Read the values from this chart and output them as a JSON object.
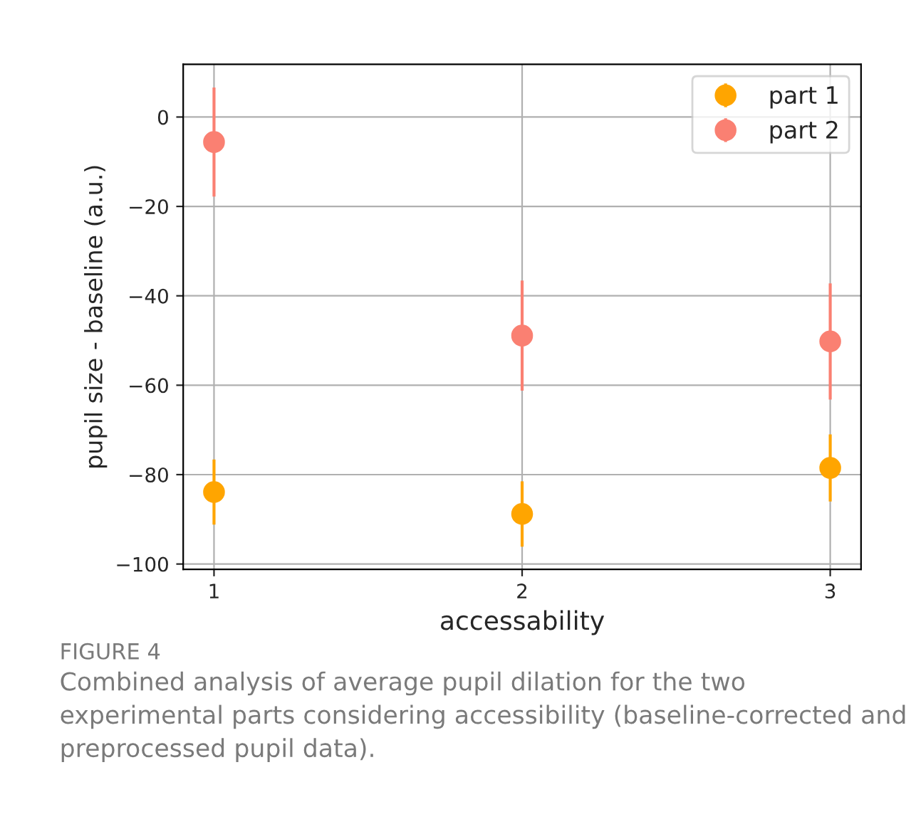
{
  "chart_data": {
    "type": "scatter",
    "xlabel": "accessability",
    "ylabel": "pupil size - baseline (a.u.)",
    "x": [
      1,
      2,
      3
    ],
    "series": [
      {
        "name": "part 1",
        "color": "#ffa500",
        "values": [
          -83.9,
          -88.8,
          -78.5
        ],
        "errors": [
          7.3,
          7.3,
          7.5
        ]
      },
      {
        "name": "part 2",
        "color": "#fa8072",
        "values": [
          -5.6,
          -48.9,
          -50.2
        ],
        "errors": [
          12.2,
          12.3,
          13
        ]
      }
    ],
    "xlim": [
      0.9,
      3.1
    ],
    "xticks": [
      1,
      2,
      3
    ],
    "ylim": [
      -101.2,
      11.8
    ],
    "yticks": [
      -100,
      -80,
      -60,
      -40,
      -20,
      0
    ],
    "grid": true,
    "legend": "top right",
    "marker": "circle",
    "annotations": [
      "FIGURE 4",
      "Combined analysis of average pupil dilation for the two experimental parts considering accessibility (baseline-corrected and preprocessed pupil data)."
    ]
  }
}
